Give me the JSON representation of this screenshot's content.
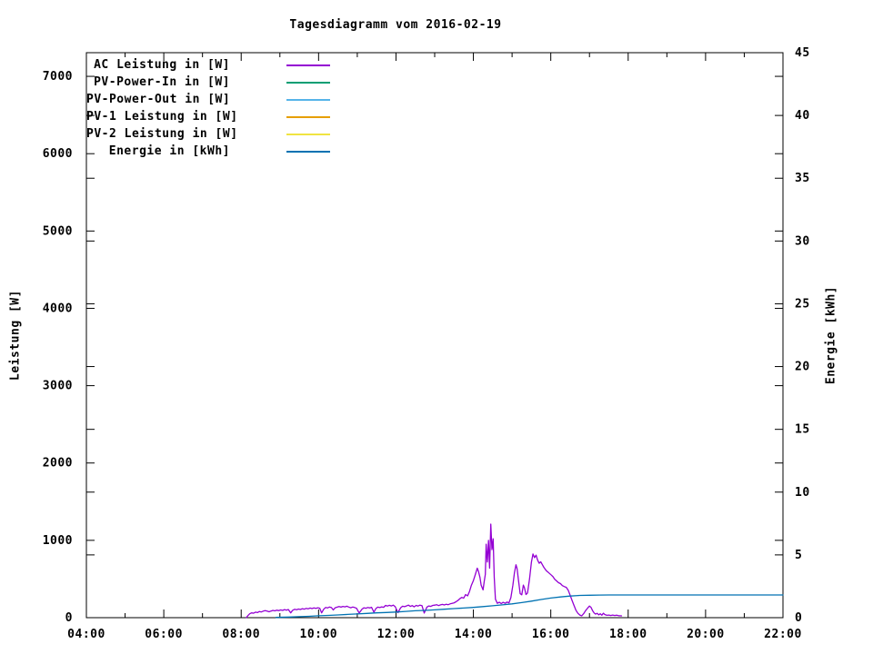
{
  "chart_data": {
    "type": "line",
    "title": "Tagesdiagramm vom 2016-02-19",
    "xlabel": "",
    "ylabel": "Leistung [W]",
    "y2label": "Energie [kWh]",
    "grid": false,
    "legend_position": "top-left-inside",
    "background_color": "#ffffff",
    "axis_color": "#000000",
    "x_axis": {
      "unit": "time",
      "start_hour": 4,
      "end_hour": 22,
      "major_tick_every_hours": 2,
      "minor_tick_every_hours": 1,
      "tick_labels": [
        "04:00",
        "06:00",
        "08:00",
        "10:00",
        "12:00",
        "14:00",
        "16:00",
        "18:00",
        "20:00",
        "22:00"
      ]
    },
    "y_axis": {
      "side": "left",
      "min": 0,
      "max": 7306,
      "tick_step": 1000,
      "tick_labels": [
        "0",
        "1000",
        "2000",
        "3000",
        "4000",
        "5000",
        "6000",
        "7000"
      ]
    },
    "y2_axis": {
      "side": "right",
      "min": 0,
      "max": 45,
      "tick_step": 5,
      "tick_labels": [
        "0",
        "5",
        "10",
        "15",
        "20",
        "25",
        "30",
        "35",
        "40",
        "45"
      ]
    },
    "series": [
      {
        "name": "AC Leistung in [W]",
        "color": "#9400d3",
        "axis": "y",
        "points": [
          [
            8.13,
            0
          ],
          [
            8.18,
            30
          ],
          [
            8.22,
            50
          ],
          [
            8.27,
            62
          ],
          [
            8.32,
            58
          ],
          [
            8.37,
            72
          ],
          [
            8.42,
            66
          ],
          [
            8.47,
            80
          ],
          [
            8.52,
            74
          ],
          [
            8.57,
            84
          ],
          [
            8.62,
            92
          ],
          [
            8.67,
            84
          ],
          [
            8.72,
            76
          ],
          [
            8.77,
            86
          ],
          [
            8.82,
            94
          ],
          [
            8.87,
            88
          ],
          [
            8.92,
            96
          ],
          [
            8.97,
            92
          ],
          [
            9.02,
            100
          ],
          [
            9.07,
            94
          ],
          [
            9.12,
            104
          ],
          [
            9.17,
            98
          ],
          [
            9.22,
            106
          ],
          [
            9.28,
            62
          ],
          [
            9.33,
            95
          ],
          [
            9.38,
            108
          ],
          [
            9.43,
            102
          ],
          [
            9.48,
            112
          ],
          [
            9.53,
            106
          ],
          [
            9.58,
            116
          ],
          [
            9.63,
            110
          ],
          [
            9.68,
            120
          ],
          [
            9.73,
            114
          ],
          [
            9.78,
            124
          ],
          [
            9.83,
            118
          ],
          [
            9.88,
            126
          ],
          [
            9.93,
            120
          ],
          [
            9.98,
            128
          ],
          [
            10.03,
            122
          ],
          [
            10.08,
            62
          ],
          [
            10.13,
            108
          ],
          [
            10.18,
            132
          ],
          [
            10.23,
            126
          ],
          [
            10.28,
            138
          ],
          [
            10.33,
            130
          ],
          [
            10.38,
            100
          ],
          [
            10.43,
            128
          ],
          [
            10.48,
            136
          ],
          [
            10.53,
            144
          ],
          [
            10.58,
            136
          ],
          [
            10.63,
            146
          ],
          [
            10.68,
            140
          ],
          [
            10.73,
            148
          ],
          [
            10.78,
            138
          ],
          [
            10.83,
            128
          ],
          [
            10.88,
            138
          ],
          [
            10.93,
            132
          ],
          [
            10.98,
            122
          ],
          [
            11.05,
            60
          ],
          [
            11.12,
            108
          ],
          [
            11.17,
            128
          ],
          [
            11.22,
            122
          ],
          [
            11.27,
            132
          ],
          [
            11.32,
            126
          ],
          [
            11.37,
            134
          ],
          [
            11.43,
            70
          ],
          [
            11.48,
            118
          ],
          [
            11.53,
            136
          ],
          [
            11.58,
            130
          ],
          [
            11.63,
            140
          ],
          [
            11.68,
            134
          ],
          [
            11.73,
            158
          ],
          [
            11.78,
            150
          ],
          [
            11.83,
            160
          ],
          [
            11.88,
            152
          ],
          [
            11.93,
            162
          ],
          [
            11.98,
            142
          ],
          [
            12.05,
            65
          ],
          [
            12.12,
            128
          ],
          [
            12.17,
            148
          ],
          [
            12.22,
            142
          ],
          [
            12.27,
            152
          ],
          [
            12.32,
            162
          ],
          [
            12.37,
            146
          ],
          [
            12.42,
            156
          ],
          [
            12.47,
            140
          ],
          [
            12.52,
            158
          ],
          [
            12.57,
            150
          ],
          [
            12.62,
            162
          ],
          [
            12.67,
            156
          ],
          [
            12.73,
            60
          ],
          [
            12.8,
            138
          ],
          [
            12.85,
            152
          ],
          [
            12.9,
            146
          ],
          [
            12.95,
            158
          ],
          [
            13.0,
            162
          ],
          [
            13.05,
            168
          ],
          [
            13.1,
            156
          ],
          [
            13.15,
            166
          ],
          [
            13.2,
            172
          ],
          [
            13.25,
            164
          ],
          [
            13.3,
            174
          ],
          [
            13.35,
            168
          ],
          [
            13.4,
            178
          ],
          [
            13.45,
            184
          ],
          [
            13.5,
            192
          ],
          [
            13.55,
            205
          ],
          [
            13.6,
            222
          ],
          [
            13.65,
            245
          ],
          [
            13.7,
            262
          ],
          [
            13.75,
            252
          ],
          [
            13.8,
            298
          ],
          [
            13.85,
            282
          ],
          [
            13.9,
            340
          ],
          [
            13.95,
            420
          ],
          [
            14.0,
            480
          ],
          [
            14.05,
            558
          ],
          [
            14.1,
            640
          ],
          [
            14.13,
            600
          ],
          [
            14.17,
            520
          ],
          [
            14.2,
            420
          ],
          [
            14.25,
            360
          ],
          [
            14.28,
            470
          ],
          [
            14.31,
            560
          ],
          [
            14.33,
            950
          ],
          [
            14.36,
            720
          ],
          [
            14.39,
            1000
          ],
          [
            14.42,
            640
          ],
          [
            14.45,
            1210
          ],
          [
            14.48,
            880
          ],
          [
            14.51,
            1020
          ],
          [
            14.54,
            520
          ],
          [
            14.57,
            240
          ],
          [
            14.62,
            185
          ],
          [
            14.67,
            200
          ],
          [
            14.72,
            182
          ],
          [
            14.77,
            198
          ],
          [
            14.82,
            186
          ],
          [
            14.87,
            202
          ],
          [
            14.92,
            192
          ],
          [
            14.97,
            260
          ],
          [
            15.02,
            420
          ],
          [
            15.06,
            580
          ],
          [
            15.1,
            684
          ],
          [
            15.13,
            636
          ],
          [
            15.17,
            470
          ],
          [
            15.21,
            310
          ],
          [
            15.25,
            296
          ],
          [
            15.29,
            420
          ],
          [
            15.32,
            388
          ],
          [
            15.36,
            300
          ],
          [
            15.4,
            320
          ],
          [
            15.45,
            500
          ],
          [
            15.5,
            720
          ],
          [
            15.54,
            823
          ],
          [
            15.58,
            776
          ],
          [
            15.62,
            808
          ],
          [
            15.66,
            744
          ],
          [
            15.7,
            704
          ],
          [
            15.74,
            722
          ],
          [
            15.78,
            688
          ],
          [
            15.82,
            652
          ],
          [
            15.86,
            624
          ],
          [
            15.9,
            600
          ],
          [
            15.94,
            584
          ],
          [
            15.98,
            566
          ],
          [
            16.02,
            548
          ],
          [
            16.06,
            528
          ],
          [
            16.1,
            498
          ],
          [
            16.15,
            476
          ],
          [
            16.2,
            452
          ],
          [
            16.25,
            440
          ],
          [
            16.3,
            415
          ],
          [
            16.35,
            402
          ],
          [
            16.4,
            392
          ],
          [
            16.45,
            356
          ],
          [
            16.5,
            292
          ],
          [
            16.55,
            222
          ],
          [
            16.6,
            158
          ],
          [
            16.65,
            96
          ],
          [
            16.7,
            56
          ],
          [
            16.75,
            34
          ],
          [
            16.8,
            24
          ],
          [
            16.85,
            52
          ],
          [
            16.9,
            92
          ],
          [
            16.95,
            122
          ],
          [
            17.0,
            150
          ],
          [
            17.04,
            134
          ],
          [
            17.08,
            92
          ],
          [
            17.12,
            62
          ],
          [
            17.16,
            46
          ],
          [
            17.2,
            56
          ],
          [
            17.24,
            36
          ],
          [
            17.28,
            50
          ],
          [
            17.32,
            32
          ],
          [
            17.36,
            58
          ],
          [
            17.4,
            40
          ],
          [
            17.45,
            30
          ],
          [
            17.5,
            34
          ],
          [
            17.55,
            28
          ],
          [
            17.6,
            34
          ],
          [
            17.65,
            28
          ],
          [
            17.7,
            32
          ],
          [
            17.75,
            26
          ],
          [
            17.83,
            24
          ]
        ]
      },
      {
        "name": "PV-Power-In in [W]",
        "color": "#009e73",
        "axis": "y",
        "points": []
      },
      {
        "name": "PV-Power-Out in [W]",
        "color": "#56b4e9",
        "axis": "y",
        "points": []
      },
      {
        "name": "PV-1 Leistung in [W]",
        "color": "#e69f00",
        "axis": "y",
        "points": []
      },
      {
        "name": "PV-2 Leistung in [W]",
        "color": "#f0e442",
        "axis": "y",
        "points": []
      },
      {
        "name": "Energie in [kWh]",
        "color": "#0072b2",
        "axis": "y2",
        "points": [
          [
            8.9,
            0.02
          ],
          [
            9.25,
            0.05
          ],
          [
            9.5,
            0.08
          ],
          [
            9.75,
            0.11
          ],
          [
            10.0,
            0.15
          ],
          [
            10.25,
            0.18
          ],
          [
            10.5,
            0.22
          ],
          [
            10.75,
            0.26
          ],
          [
            11.0,
            0.3
          ],
          [
            11.25,
            0.34
          ],
          [
            11.5,
            0.38
          ],
          [
            11.75,
            0.41
          ],
          [
            12.0,
            0.45
          ],
          [
            12.25,
            0.5
          ],
          [
            12.5,
            0.55
          ],
          [
            12.75,
            0.58
          ],
          [
            13.0,
            0.62
          ],
          [
            13.25,
            0.67
          ],
          [
            13.5,
            0.72
          ],
          [
            13.75,
            0.77
          ],
          [
            14.0,
            0.82
          ],
          [
            14.25,
            0.88
          ],
          [
            14.5,
            0.95
          ],
          [
            14.75,
            1.02
          ],
          [
            15.0,
            1.1
          ],
          [
            15.25,
            1.2
          ],
          [
            15.5,
            1.32
          ],
          [
            15.75,
            1.45
          ],
          [
            16.0,
            1.56
          ],
          [
            16.25,
            1.65
          ],
          [
            16.5,
            1.72
          ],
          [
            16.75,
            1.77
          ],
          [
            17.0,
            1.79
          ],
          [
            17.25,
            1.8
          ],
          [
            17.5,
            1.81
          ],
          [
            18.0,
            1.81
          ],
          [
            19.0,
            1.81
          ],
          [
            20.0,
            1.81
          ],
          [
            21.0,
            1.81
          ],
          [
            22.0,
            1.81
          ]
        ]
      }
    ]
  }
}
